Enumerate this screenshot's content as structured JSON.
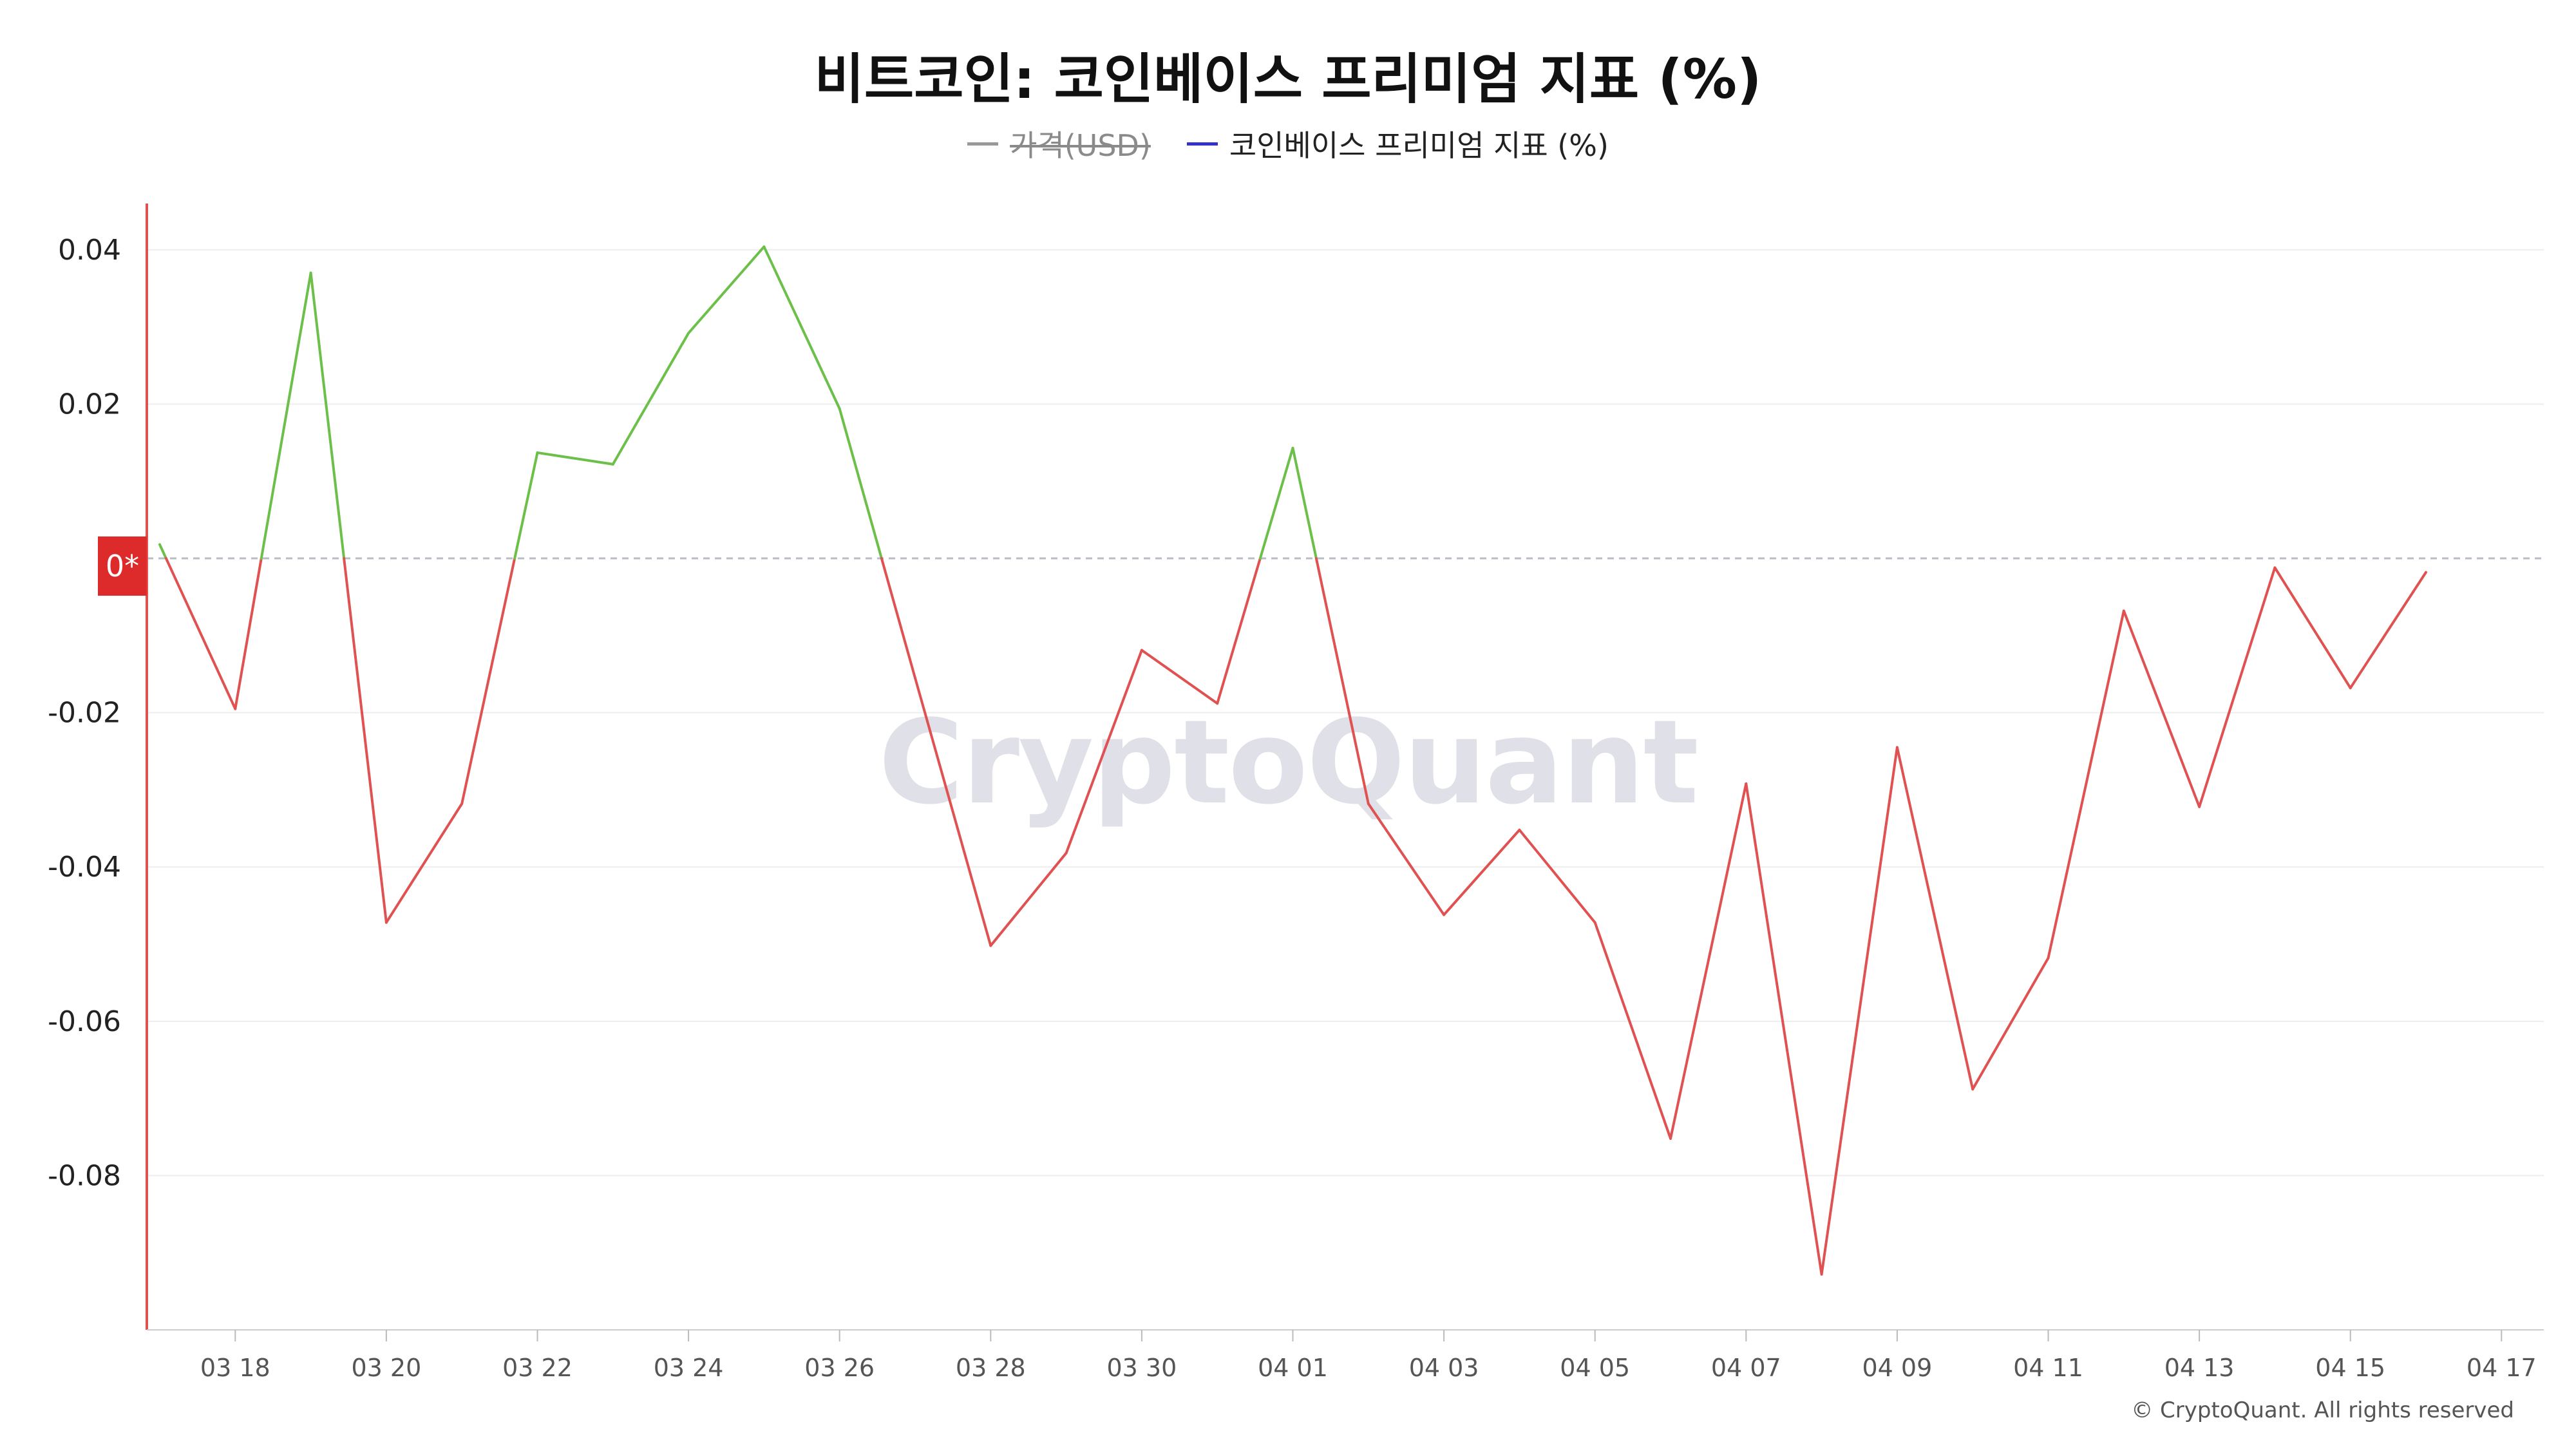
{
  "chart_data": {
    "type": "line",
    "title": "비트코인: 코인베이스 프리미엄 지표 (%)",
    "legend": [
      {
        "label": "가격(USD)",
        "color": "#999999",
        "hidden": true
      },
      {
        "label": "코인베이스 프리미엄 지표 (%)",
        "color": "#3333cc",
        "hidden": false
      }
    ],
    "x_ticks": [
      "03 18",
      "03 20",
      "03 22",
      "03 24",
      "03 26",
      "03 28",
      "03 30",
      "04 01",
      "04 03",
      "04 05",
      "04 07",
      "04 09",
      "04 11",
      "04 13",
      "04 15",
      "04 17"
    ],
    "y_ticks": [
      "0.04",
      "0.02",
      "-0.02",
      "-0.04",
      "-0.06",
      "-0.08"
    ],
    "y_tick_values": [
      0.04,
      0.02,
      -0.02,
      -0.04,
      -0.06,
      -0.08
    ],
    "ylim": [
      -0.1,
      0.046
    ],
    "zero_label": "0*",
    "grid": true,
    "positive_color": "#6cc04a",
    "negative_color": "#e05252",
    "series": [
      {
        "name": "코인베이스 프리미엄 지표 (%)",
        "x": [
          "03-17",
          "03-18",
          "03-19",
          "03-20",
          "03-21",
          "03-22",
          "03-23",
          "03-24",
          "03-25",
          "03-26",
          "03-27",
          "03-28",
          "03-29",
          "03-30",
          "03-31",
          "04-01",
          "04-02",
          "04-03",
          "04-04",
          "04-05",
          "04-06",
          "04-07",
          "04-08",
          "04-09",
          "04-10",
          "04-11",
          "04-12",
          "04-13",
          "04-14",
          "04-15",
          "04-16"
        ],
        "values": [
          0.0018,
          -0.0195,
          0.037,
          -0.0472,
          -0.0318,
          0.0137,
          0.0122,
          0.0292,
          0.0404,
          0.0194,
          -0.0155,
          -0.0502,
          -0.0382,
          -0.0119,
          -0.0188,
          0.0143,
          -0.0318,
          -0.0462,
          -0.0352,
          -0.0472,
          -0.0752,
          -0.0292,
          -0.0928,
          -0.0245,
          -0.0688,
          -0.0518,
          -0.0068,
          -0.0322,
          -0.0012,
          -0.0168,
          -0.0018
        ]
      }
    ]
  },
  "footer": {
    "copyright": "© CryptoQuant. All rights reserved"
  },
  "watermark": "CryptoQuant"
}
